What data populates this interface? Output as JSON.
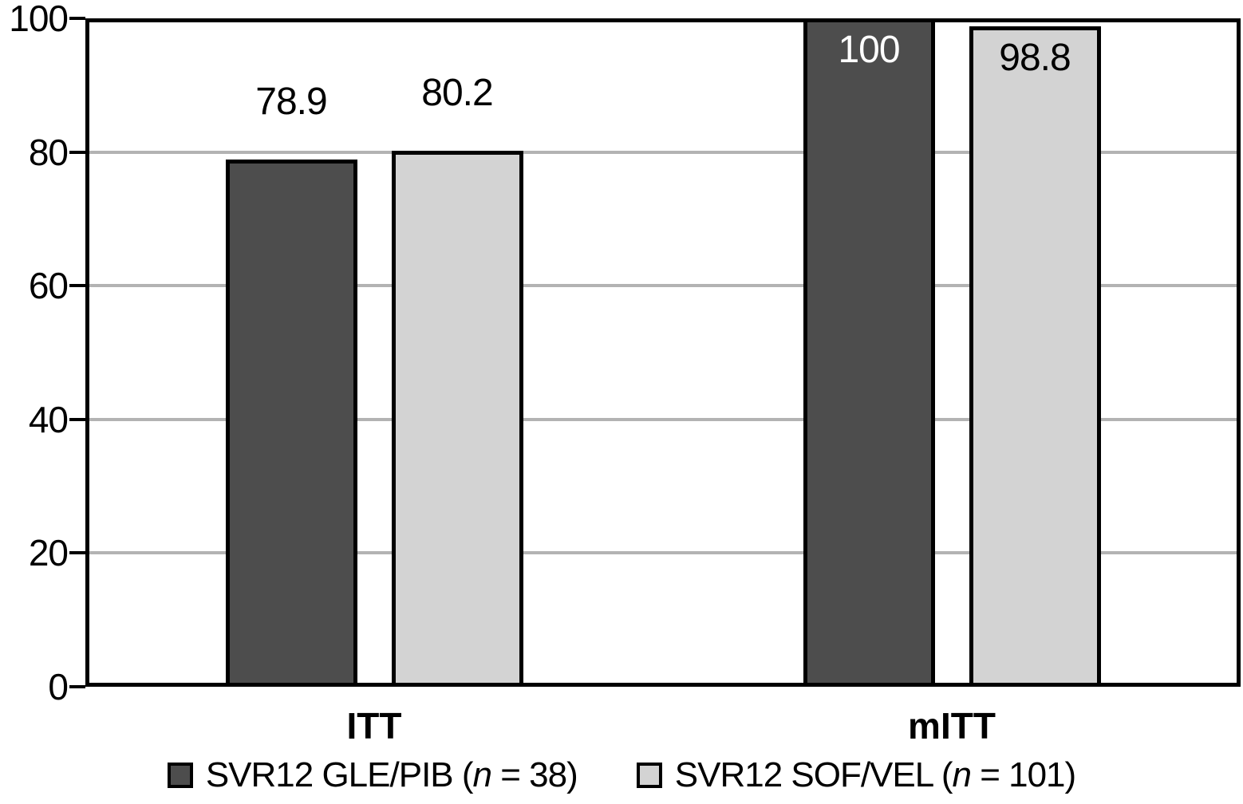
{
  "chart_data": {
    "type": "bar",
    "title": "",
    "xlabel": "",
    "ylabel": "",
    "categories": [
      "ITT",
      "mITT"
    ],
    "series": [
      {
        "name": "SVR12 GLE/PIB (n = 38)",
        "label_pre": "SVR12 GLE/PIB (",
        "label_var": "n",
        "label_post": " = 38)",
        "color": "#4d4d4d",
        "values": [
          78.9,
          100
        ],
        "value_labels": [
          "78.9",
          "100"
        ],
        "label_placement": [
          "above",
          "inside"
        ],
        "label_color": [
          "#000000",
          "#ffffff"
        ]
      },
      {
        "name": "SVR12 SOF/VEL (n = 101)",
        "label_pre": "SVR12 SOF/VEL (",
        "label_var": "n",
        "label_post": " = 101)",
        "color": "#d3d3d3",
        "values": [
          80.2,
          98.8
        ],
        "value_labels": [
          "80.2",
          "98.8"
        ],
        "label_placement": [
          "above",
          "inside"
        ],
        "label_color": [
          "#000000",
          "#000000"
        ]
      }
    ],
    "ylim": [
      0,
      100
    ],
    "yticks": [
      0,
      20,
      40,
      60,
      80,
      100
    ],
    "ytick_labels": [
      "0",
      "20",
      "40",
      "60",
      "80",
      "100"
    ],
    "grid": true,
    "gridline_color": "#b3b3b3",
    "axis_color": "#000000",
    "bar_border_color": "#000000",
    "legend_position": "bottom"
  }
}
